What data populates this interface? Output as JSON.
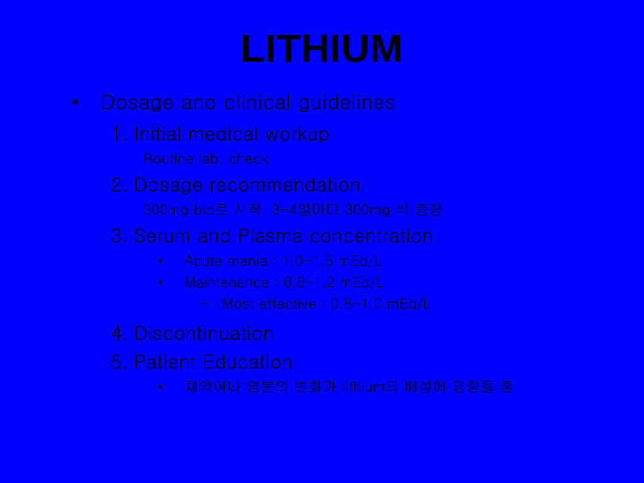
{
  "colors": {
    "background": "#0000ff",
    "text": "#000000"
  },
  "typography": {
    "title_fontsize": 44,
    "lvl0_fontsize": 22,
    "lvl1_fontsize": 21,
    "lvl2_fontsize": 16,
    "lvl3_fontsize": 16,
    "lvl4_fontsize": 16
  },
  "title": "LITHIUM",
  "bullet0": "•",
  "heading": "Dosage and clinical guidelines",
  "items": {
    "i1": {
      "num": "1.",
      "label": "Initial medical workup",
      "sub": "Routine lab. check"
    },
    "i2": {
      "num": "2.",
      "label": "Dosage recommendation",
      "sub": "300mg bid로 시작, 3-4일마다 300mg 씩 증량"
    },
    "i3": {
      "num": "3.",
      "label": "Serum and Plasma concentration",
      "s1": {
        "b": "•",
        "t": "Acute mania : 1.0-1.5 mEq/L"
      },
      "s2": {
        "b": "•",
        "t": "Maintenance : 0.6-1.2 mEq/L"
      },
      "s3": {
        "d": "–",
        "t": "Most effective : 0.8-1.0 mEq/L"
      }
    },
    "i4": {
      "num": "4.",
      "label": "Discontinuation"
    },
    "i5": {
      "num": "5.",
      "label": "Patient Education",
      "s1": {
        "b": "•",
        "t": "체액이나 염분의 변화가 lithium의 배설에 영향을 줌"
      }
    }
  }
}
